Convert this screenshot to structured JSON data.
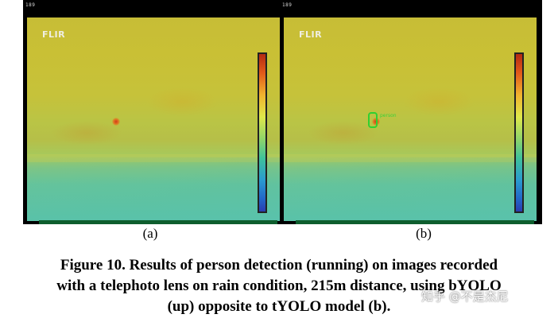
{
  "figure": {
    "panels": [
      {
        "id": "a",
        "label": "(a)",
        "frame_number": "189",
        "logo_text": "FLIR",
        "detection_label": ""
      },
      {
        "id": "b",
        "label": "(b)",
        "frame_number": "189",
        "logo_text": "FLIR",
        "detection_label": "person"
      }
    ],
    "caption_lines": [
      "Figure 10. Results of person detection (running) on images recorded",
      "with a telephoto lens on rain condition, 215m distance, using bYOLO",
      "(up) opposite to tYOLO model (b)."
    ]
  },
  "watermark": {
    "text": "知乎 @不是杰尼"
  },
  "colors": {
    "detection_box": "#30d030",
    "thermal_background": "#c7bd36",
    "scale_hot": "#b42a12",
    "scale_cold": "#2a3bb0"
  }
}
